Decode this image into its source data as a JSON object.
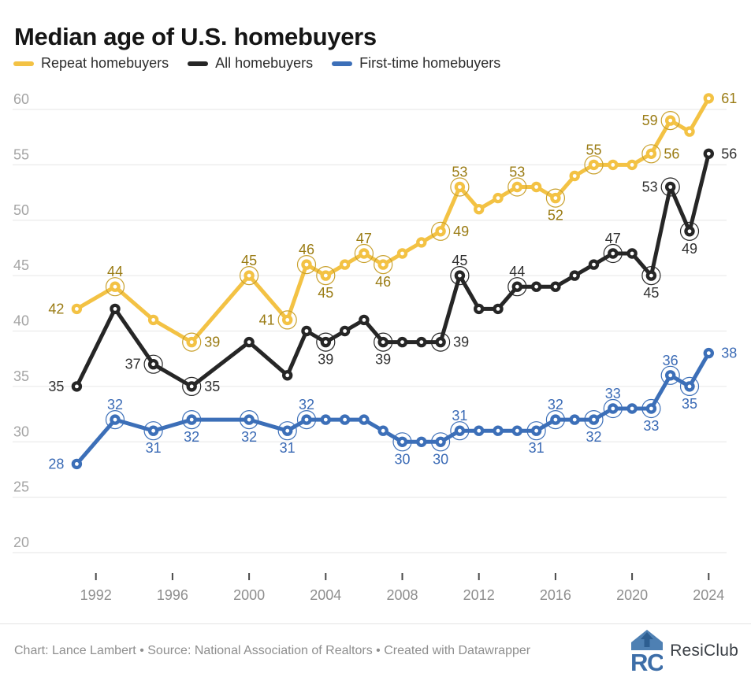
{
  "title": "Median age of U.S. homebuyers",
  "legend": {
    "items": [
      {
        "label": "Repeat homebuyers",
        "color": "#F3C244"
      },
      {
        "label": "All homebuyers",
        "color": "#262626"
      },
      {
        "label": "First-time homebuyers",
        "color": "#3C6FB8"
      }
    ]
  },
  "footer": {
    "credit": "Chart: Lance Lambert • Source: National Association of Realtors • Created with Datawrapper",
    "brand": "ResiClub"
  },
  "chart_data": {
    "type": "line",
    "title": "Median age of U.S. homebuyers",
    "xlabel": "",
    "ylabel": "",
    "ylim": [
      20,
      60
    ],
    "grid": true,
    "legend_position": "top",
    "y_axis": {
      "ticks": [
        60,
        55,
        50,
        45,
        40,
        35,
        30,
        25,
        20
      ]
    },
    "x_axis": {
      "ticks": [
        1992,
        1996,
        2000,
        2004,
        2008,
        2012,
        2016,
        2020,
        2024
      ]
    },
    "x": [
      1991,
      1993,
      1995,
      1997,
      2000,
      2002,
      2003,
      2004,
      2005,
      2006,
      2007,
      2008,
      2009,
      2010,
      2011,
      2012,
      2013,
      2014,
      2015,
      2016,
      2017,
      2018,
      2019,
      2020,
      2021,
      2022,
      2023,
      2024
    ],
    "series": [
      {
        "id": "repeat",
        "name": "Repeat homebuyers",
        "color": "#F3C244",
        "ring_color": "#C9A12E",
        "label_color": "#9A7B13",
        "points": [
          {
            "x": 1991,
            "v": 42,
            "pos": "left",
            "ring": false
          },
          {
            "x": 1993,
            "v": 44,
            "pos": "above",
            "ring": true
          },
          {
            "x": 1995,
            "v": 41
          },
          {
            "x": 1997,
            "v": 39,
            "pos": "right",
            "ring": true
          },
          {
            "x": 2000,
            "v": 45,
            "pos": "above",
            "ring": true
          },
          {
            "x": 2002,
            "v": 41,
            "pos": "left",
            "ring": true
          },
          {
            "x": 2003,
            "v": 46,
            "pos": "above",
            "ring": true
          },
          {
            "x": 2004,
            "v": 45,
            "pos": "below",
            "ring": true
          },
          {
            "x": 2005,
            "v": 46
          },
          {
            "x": 2006,
            "v": 47,
            "pos": "above",
            "ring": true
          },
          {
            "x": 2007,
            "v": 46,
            "pos": "below",
            "ring": true
          },
          {
            "x": 2008,
            "v": 47
          },
          {
            "x": 2009,
            "v": 48
          },
          {
            "x": 2010,
            "v": 49,
            "pos": "right",
            "ring": true
          },
          {
            "x": 2011,
            "v": 53,
            "pos": "above",
            "ring": true
          },
          {
            "x": 2012,
            "v": 51
          },
          {
            "x": 2013,
            "v": 52
          },
          {
            "x": 2014,
            "v": 53,
            "pos": "above",
            "ring": true
          },
          {
            "x": 2015,
            "v": 53
          },
          {
            "x": 2016,
            "v": 52,
            "pos": "below",
            "ring": true
          },
          {
            "x": 2017,
            "v": 54
          },
          {
            "x": 2018,
            "v": 55,
            "pos": "above",
            "ring": true
          },
          {
            "x": 2019,
            "v": 55
          },
          {
            "x": 2020,
            "v": 55
          },
          {
            "x": 2021,
            "v": 56,
            "pos": "right",
            "ring": true
          },
          {
            "x": 2022,
            "v": 59,
            "pos": "left",
            "ring": true
          },
          {
            "x": 2023,
            "v": 58
          },
          {
            "x": 2024,
            "v": 61,
            "pos": "right",
            "ring": false
          }
        ]
      },
      {
        "id": "all",
        "name": "All homebuyers",
        "color": "#262626",
        "ring_color": "#262626",
        "label_color": "#303030",
        "points": [
          {
            "x": 1991,
            "v": 35,
            "pos": "left",
            "ring": false
          },
          {
            "x": 1993,
            "v": 42
          },
          {
            "x": 1995,
            "v": 37,
            "pos": "left",
            "ring": true
          },
          {
            "x": 1997,
            "v": 35,
            "pos": "right",
            "ring": true
          },
          {
            "x": 2000,
            "v": 39
          },
          {
            "x": 2002,
            "v": 36
          },
          {
            "x": 2003,
            "v": 40
          },
          {
            "x": 2004,
            "v": 39,
            "pos": "below",
            "ring": true
          },
          {
            "x": 2005,
            "v": 40
          },
          {
            "x": 2006,
            "v": 41
          },
          {
            "x": 2007,
            "v": 39,
            "pos": "below",
            "ring": true
          },
          {
            "x": 2008,
            "v": 39
          },
          {
            "x": 2009,
            "v": 39
          },
          {
            "x": 2010,
            "v": 39,
            "pos": "right",
            "ring": true
          },
          {
            "x": 2011,
            "v": 45,
            "pos": "above",
            "ring": true
          },
          {
            "x": 2012,
            "v": 42
          },
          {
            "x": 2013,
            "v": 42
          },
          {
            "x": 2014,
            "v": 44,
            "pos": "above",
            "ring": true
          },
          {
            "x": 2015,
            "v": 44
          },
          {
            "x": 2016,
            "v": 44
          },
          {
            "x": 2017,
            "v": 45
          },
          {
            "x": 2018,
            "v": 46
          },
          {
            "x": 2019,
            "v": 47,
            "pos": "above",
            "ring": true
          },
          {
            "x": 2020,
            "v": 47
          },
          {
            "x": 2021,
            "v": 45,
            "pos": "below",
            "ring": true
          },
          {
            "x": 2022,
            "v": 53,
            "pos": "left",
            "ring": true
          },
          {
            "x": 2023,
            "v": 49,
            "pos": "below",
            "ring": true
          },
          {
            "x": 2024,
            "v": 56,
            "pos": "right",
            "ring": false
          }
        ]
      },
      {
        "id": "first-time",
        "name": "First-time homebuyers",
        "color": "#3C6FB8",
        "ring_color": "#3C6FB8",
        "label_color": "#3A6AB5",
        "points": [
          {
            "x": 1991,
            "v": 28,
            "pos": "left",
            "ring": false
          },
          {
            "x": 1993,
            "v": 32,
            "pos": "above",
            "ring": true
          },
          {
            "x": 1995,
            "v": 31,
            "pos": "below",
            "ring": true
          },
          {
            "x": 1997,
            "v": 32,
            "pos": "below",
            "ring": true
          },
          {
            "x": 2000,
            "v": 32,
            "pos": "below",
            "ring": true
          },
          {
            "x": 2002,
            "v": 31,
            "pos": "below",
            "ring": true
          },
          {
            "x": 2003,
            "v": 32,
            "pos": "above",
            "ring": true
          },
          {
            "x": 2004,
            "v": 32
          },
          {
            "x": 2005,
            "v": 32
          },
          {
            "x": 2006,
            "v": 32
          },
          {
            "x": 2007,
            "v": 31
          },
          {
            "x": 2008,
            "v": 30,
            "pos": "below",
            "ring": true
          },
          {
            "x": 2009,
            "v": 30
          },
          {
            "x": 2010,
            "v": 30,
            "pos": "below",
            "ring": true
          },
          {
            "x": 2011,
            "v": 31,
            "pos": "above",
            "ring": true
          },
          {
            "x": 2012,
            "v": 31
          },
          {
            "x": 2013,
            "v": 31
          },
          {
            "x": 2014,
            "v": 31
          },
          {
            "x": 2015,
            "v": 31,
            "pos": "below",
            "ring": true
          },
          {
            "x": 2016,
            "v": 32,
            "pos": "above",
            "ring": true
          },
          {
            "x": 2017,
            "v": 32
          },
          {
            "x": 2018,
            "v": 32,
            "pos": "below",
            "ring": true
          },
          {
            "x": 2019,
            "v": 33,
            "pos": "above",
            "ring": true
          },
          {
            "x": 2020,
            "v": 33
          },
          {
            "x": 2021,
            "v": 33,
            "pos": "below",
            "ring": true
          },
          {
            "x": 2022,
            "v": 36,
            "pos": "above",
            "ring": true
          },
          {
            "x": 2023,
            "v": 35,
            "pos": "below",
            "ring": true
          },
          {
            "x": 2024,
            "v": 38,
            "pos": "right",
            "ring": false
          }
        ]
      }
    ]
  }
}
